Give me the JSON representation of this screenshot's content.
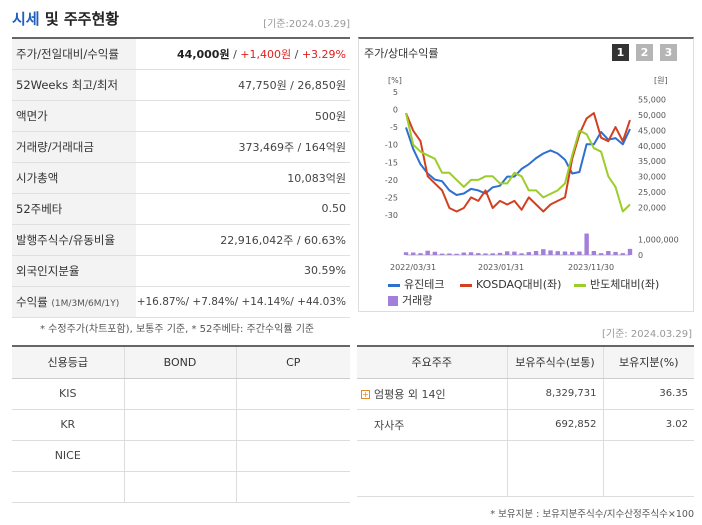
{
  "header": {
    "title_accent": "시세",
    "title_rest": " 및 주주현황",
    "date": "[기준:2024.03.29]"
  },
  "quote_rows": [
    {
      "label": "주가/전일대비/수익률",
      "price": "44,000원",
      "change": "+1,400원",
      "pct": "+3.29%"
    },
    {
      "label": "52Weeks 최고/최저",
      "value": "47,750원 / 26,850원"
    },
    {
      "label": "액면가",
      "value": "500원"
    },
    {
      "label": "거래량/거래대금",
      "value": "373,469주 / 164억원"
    },
    {
      "label": "시가총액",
      "value": "10,083억원"
    },
    {
      "label": "52주베타",
      "value": "0.50"
    },
    {
      "label": "발행주식수/유동비율",
      "value": "22,916,042주 / 60.63%"
    },
    {
      "label": "외국인지분율",
      "value": "30.59%"
    },
    {
      "label": "수익률",
      "sublabel": "(1M/3M/6M/1Y)",
      "value": "+16.87%/ +7.84%/ +14.14%/ +44.03%"
    }
  ],
  "note1": "* 수정주가(차트포함), 보통주 기준, * 52주베타: 주간수익률 기준",
  "chart": {
    "title": "주가/상대수익률",
    "pages": [
      "1",
      "2",
      "3"
    ],
    "left_unit": "[%]",
    "right_unit": "[원]",
    "legend": [
      "유진테크",
      "KOSDAQ대비(좌)",
      "반도체대비(좌)",
      "거래량"
    ],
    "colors": {
      "stock": "#2e6fd0",
      "kosdaq": "#d2401f",
      "semi": "#9ccd2a",
      "volume": "#a27fd8"
    }
  },
  "chart_data": {
    "type": "line",
    "x_ticks": [
      "2022/03/31",
      "2023/01/31",
      "2023/11/30"
    ],
    "y_left": {
      "label": "[%]",
      "ticks": [
        5,
        0,
        -5,
        -10,
        -15,
        -20,
        -25,
        -30
      ],
      "range": [
        -30,
        5
      ]
    },
    "y_right": {
      "label": "[원]",
      "ticks": [
        "55,000",
        "50,000",
        "45,000",
        "40,000",
        "35,000",
        "30,000",
        "25,000",
        "20,000"
      ],
      "range": [
        17500,
        57500
      ]
    },
    "volume_axis": {
      "ticks": [
        "1,000,000",
        "0"
      ],
      "range": [
        0,
        1500000
      ]
    },
    "series": [
      {
        "name": "유진테크",
        "axis": "right",
        "values": [
          46000,
          39000,
          34000,
          31000,
          29000,
          28500,
          25500,
          24000,
          24500,
          26000,
          25500,
          24500,
          26500,
          27000,
          30000,
          30000,
          32500,
          34000,
          36000,
          37500,
          38500,
          37500,
          35500,
          31000,
          31500,
          40500,
          40500,
          44500,
          42000,
          42500,
          40500,
          45500
        ]
      },
      {
        "name": "KOSDAQ대비(좌)",
        "axis": "left",
        "values": [
          -1,
          -6,
          -9,
          -19,
          -21,
          -23,
          -28,
          -29,
          -28,
          -25,
          -26,
          -23,
          -28,
          -26,
          -27,
          -26,
          -28.5,
          -25,
          -27,
          -29,
          -27,
          -26,
          -25,
          -14,
          -7,
          -2.5,
          -1,
          -8,
          -9,
          -5,
          -9,
          -3
        ]
      },
      {
        "name": "반도체대비(좌)",
        "axis": "left",
        "values": [
          -1,
          -10,
          -12,
          -13,
          -14,
          -18,
          -18,
          -20,
          -22,
          -20,
          -20,
          -19,
          -19,
          -21,
          -21,
          -18,
          -19,
          -23,
          -23,
          -25,
          -24,
          -23,
          -21,
          -13,
          -6,
          -7,
          -11,
          -12,
          -19,
          -22,
          -29,
          -27
        ]
      },
      {
        "name": "거래량",
        "axis": "volume",
        "values": [
          180000,
          160000,
          120000,
          280000,
          210000,
          90000,
          100000,
          80000,
          160000,
          180000,
          120000,
          100000,
          110000,
          140000,
          240000,
          220000,
          110000,
          190000,
          260000,
          380000,
          300000,
          250000,
          230000,
          200000,
          230000,
          1400000,
          260000,
          120000,
          260000,
          200000,
          120000,
          400000
        ]
      }
    ]
  },
  "date2": "[기준: 2024.03.29]",
  "credit": {
    "headers": [
      "신용등급",
      "BOND",
      "CP"
    ],
    "rows": [
      [
        "KIS",
        "",
        ""
      ],
      [
        "KR",
        "",
        ""
      ],
      [
        "NICE",
        "",
        ""
      ],
      [
        "",
        "",
        ""
      ]
    ]
  },
  "holders": {
    "headers": [
      "주요주주",
      "보유주식수(보통)",
      "보유지분(%)"
    ],
    "rows": [
      {
        "name": "엄평용 외 14인",
        "shares": "8,329,731",
        "pct": "36.35"
      },
      {
        "name": "자사주",
        "shares": "692,852",
        "pct": "3.02"
      },
      {
        "name": "",
        "shares": "",
        "pct": ""
      }
    ]
  },
  "note2": "* 보유지분 : 보유지분주식수/지수산정주식수×100"
}
